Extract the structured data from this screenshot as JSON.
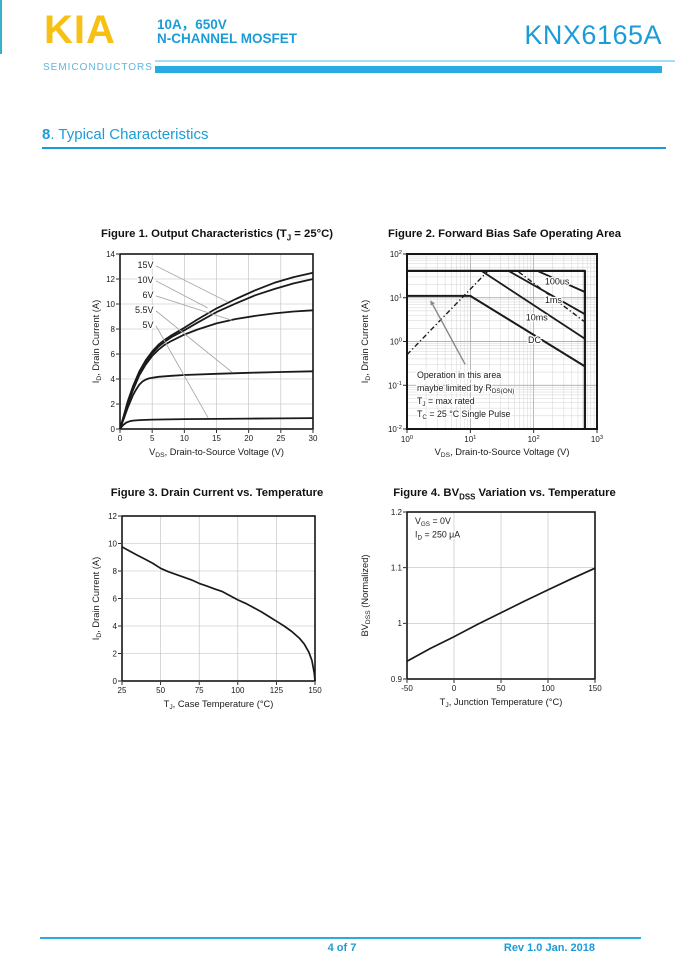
{
  "colors": {
    "blue": "#1B9CD8",
    "rule": "#29ABE2",
    "rule_light": "#A8DCF0",
    "yellow": "#F6C114",
    "logo_sub_blue": "#62B5DB",
    "edge_teal": "#35B3C6",
    "chart_ink": "#1a1a1a",
    "grid_gray": "#bdbdbd",
    "leader_gray": "#ABABAB"
  },
  "header": {
    "logo_text": "KIA",
    "logo_sub": "SEMICONDUCTORS",
    "rating": "10A，650V",
    "device_type": "N-CHANNEL MOSFET",
    "part_number": "KNX6165A"
  },
  "section": {
    "number": "8",
    "title": ".  Typical Characteristics"
  },
  "footer": {
    "page_info": "4 of 7",
    "revision": "Rev 1.0 Jan. 2018"
  },
  "chart_data": [
    {
      "type": "line",
      "title": "Figure 1. Output Characteristics (T~J~ = 25°C)",
      "xlabel": "V~DS~, Drain-to-Source Voltage (V)",
      "ylabel": "I~D~, Drain Current (A)",
      "xscale": "linear",
      "yscale": "linear",
      "xlim": [
        0,
        30
      ],
      "ylim": [
        0,
        14
      ],
      "xticks": [
        0,
        5,
        10,
        15,
        20,
        25,
        30
      ],
      "yticks": [
        0,
        2,
        4,
        6,
        8,
        10,
        12,
        14
      ],
      "xgrid": [
        5,
        10,
        15,
        20,
        25
      ],
      "ygrid": [
        2,
        4,
        6,
        8,
        10,
        12
      ],
      "series": [
        {
          "name": "VGS = 15V",
          "width": 1.8,
          "points": [
            [
              0,
              0
            ],
            [
              0.6,
              1.1
            ],
            [
              1.2,
              2.2
            ],
            [
              2,
              3.4
            ],
            [
              3,
              4.6
            ],
            [
              4,
              5.5
            ],
            [
              5,
              6.2
            ],
            [
              6,
              6.75
            ],
            [
              7,
              7.15
            ],
            [
              8,
              7.5
            ],
            [
              10,
              8.1
            ],
            [
              12,
              8.75
            ],
            [
              15,
              9.65
            ],
            [
              18,
              10.4
            ],
            [
              21,
              11.1
            ],
            [
              24,
              11.7
            ],
            [
              27,
              12.15
            ],
            [
              30,
              12.5
            ]
          ]
        },
        {
          "name": "VGS = 10V",
          "width": 1.8,
          "points": [
            [
              0,
              0
            ],
            [
              0.6,
              1.05
            ],
            [
              1.2,
              2.1
            ],
            [
              2,
              3.25
            ],
            [
              3,
              4.45
            ],
            [
              4,
              5.35
            ],
            [
              5,
              6.05
            ],
            [
              6,
              6.6
            ],
            [
              7,
              7.0
            ],
            [
              8,
              7.35
            ],
            [
              10,
              7.9
            ],
            [
              12,
              8.5
            ],
            [
              15,
              9.35
            ],
            [
              18,
              10.05
            ],
            [
              21,
              10.7
            ],
            [
              24,
              11.2
            ],
            [
              27,
              11.65
            ],
            [
              30,
              12.0
            ]
          ]
        },
        {
          "name": "VGS = 6V",
          "width": 1.8,
          "points": [
            [
              0,
              0
            ],
            [
              0.6,
              1.0
            ],
            [
              1.2,
              2.0
            ],
            [
              2,
              3.1
            ],
            [
              3,
              4.3
            ],
            [
              4,
              5.15
            ],
            [
              5,
              5.85
            ],
            [
              6,
              6.35
            ],
            [
              7,
              6.75
            ],
            [
              8,
              7.05
            ],
            [
              10,
              7.55
            ],
            [
              12,
              7.95
            ],
            [
              15,
              8.45
            ],
            [
              18,
              8.8
            ],
            [
              21,
              9.05
            ],
            [
              24,
              9.25
            ],
            [
              27,
              9.4
            ],
            [
              30,
              9.5
            ]
          ]
        },
        {
          "name": "VGS = 5.5V",
          "width": 1.8,
          "points": [
            [
              0,
              0
            ],
            [
              0.6,
              0.85
            ],
            [
              1.2,
              1.7
            ],
            [
              2,
              2.7
            ],
            [
              2.5,
              3.15
            ],
            [
              3,
              3.55
            ],
            [
              3.5,
              3.8
            ],
            [
              4,
              3.95
            ],
            [
              4.5,
              4.05
            ],
            [
              5,
              4.1
            ],
            [
              6,
              4.18
            ],
            [
              8,
              4.26
            ],
            [
              10,
              4.32
            ],
            [
              15,
              4.42
            ],
            [
              20,
              4.5
            ],
            [
              25,
              4.56
            ],
            [
              30,
              4.62
            ]
          ]
        },
        {
          "name": "VGS = 5V",
          "width": 1.8,
          "points": [
            [
              0,
              0
            ],
            [
              0.5,
              0.32
            ],
            [
              1,
              0.52
            ],
            [
              1.5,
              0.62
            ],
            [
              2,
              0.67
            ],
            [
              3,
              0.71
            ],
            [
              5,
              0.75
            ],
            [
              10,
              0.79
            ],
            [
              15,
              0.81
            ],
            [
              20,
              0.83
            ],
            [
              25,
              0.85
            ],
            [
              30,
              0.87
            ]
          ]
        },
        {
          "name": "leader-15V",
          "color": "#ABABAB",
          "width": 0.9,
          "points": [
            [
              5.6,
              13.05
            ],
            [
              16.8,
              10.15
            ]
          ]
        },
        {
          "name": "leader-10V",
          "color": "#ABABAB",
          "width": 0.9,
          "points": [
            [
              5.6,
              11.85
            ],
            [
              13.6,
              9.7
            ]
          ]
        },
        {
          "name": "leader-6V",
          "color": "#ABABAB",
          "width": 0.9,
          "points": [
            [
              5.6,
              10.65
            ],
            [
              17.4,
              8.7
            ]
          ]
        },
        {
          "name": "leader-5.5V",
          "color": "#ABABAB",
          "width": 0.9,
          "points": [
            [
              5.6,
              9.45
            ],
            [
              17.4,
              4.55
            ]
          ]
        },
        {
          "name": "leader-5V",
          "color": "#ABABAB",
          "width": 0.9,
          "points": [
            [
              5.6,
              8.25
            ],
            [
              13.7,
              0.9
            ]
          ]
        }
      ],
      "labels": [
        {
          "text": "15V",
          "x": 5.2,
          "y": 12.9,
          "anchor": "end",
          "size": 9
        },
        {
          "text": "10V",
          "x": 5.2,
          "y": 11.7,
          "anchor": "end",
          "size": 9
        },
        {
          "text": "6V",
          "x": 5.2,
          "y": 10.5,
          "anchor": "end",
          "size": 9
        },
        {
          "text": "5.5V",
          "x": 5.2,
          "y": 9.3,
          "anchor": "end",
          "size": 9
        },
        {
          "text": "5V",
          "x": 5.2,
          "y": 8.1,
          "anchor": "end",
          "size": 9
        }
      ]
    },
    {
      "type": "line",
      "title": "Figure 2. Forward Bias Safe Operating Area",
      "xlabel": "V~DS~, Drain-to-Source Voltage (V)",
      "ylabel": "I~D~, Drain Current (A)",
      "xscale": "log",
      "yscale": "log",
      "xlim": [
        1,
        1000
      ],
      "ylim": [
        0.01,
        100
      ],
      "xticks": [
        1,
        10,
        100,
        1000
      ],
      "yticks": [
        0.01,
        0.1,
        1,
        10,
        100
      ],
      "series": [
        {
          "name": "SOA boundary",
          "width": 2.2,
          "points": [
            [
              1,
              41
            ],
            [
              645,
              41
            ],
            [
              645,
              0.0105
            ]
          ]
        },
        {
          "name": "current limit + DC",
          "width": 2.0,
          "points": [
            [
              1,
              11
            ],
            [
              10,
              11
            ],
            [
              645,
              0.27
            ]
          ]
        },
        {
          "name": "10ms",
          "width": 1.8,
          "points": [
            [
              15,
              41
            ],
            [
              645,
              1.15
            ]
          ]
        },
        {
          "name": "1ms",
          "width": 1.8,
          "points": [
            [
              40,
              41
            ],
            [
              645,
              4.2
            ]
          ]
        },
        {
          "name": "100us",
          "width": 1.8,
          "points": [
            [
              115,
              41
            ],
            [
              645,
              13.5
            ]
          ]
        },
        {
          "name": "RDS(on) limit",
          "width": 1.4,
          "dash": "5 2.5 1.3 2.5",
          "points": [
            [
              1,
              0.5
            ],
            [
              19,
              41
            ]
          ]
        },
        {
          "name": "single-pulse thermal limit",
          "width": 1.4,
          "dash": "5 2.5 1.3 2.5",
          "points": [
            [
              58,
              39
            ],
            [
              620,
              2.9
            ]
          ]
        },
        {
          "name": "pointer",
          "color": "#8a8a8a",
          "width": 1.4,
          "arrow": true,
          "points": [
            [
              2.55,
              7
            ],
            [
              8.3,
              0.3
            ]
          ]
        }
      ],
      "labels": [
        {
          "text": "100us",
          "x": 235,
          "y": 20,
          "size": 9
        },
        {
          "text": "1ms",
          "x": 205,
          "y": 7.6,
          "size": 9
        },
        {
          "text": "10ms",
          "x": 112,
          "y": 3.0,
          "size": 9
        },
        {
          "text": "DC",
          "x": 103,
          "y": 0.92,
          "size": 9
        }
      ],
      "annotation": {
        "lines": [
          "Operation in this area",
          "maybe limited by R~DS(ON)~",
          "T~J~ = max rated",
          "T~C~ = 25 °C Single Pulse"
        ],
        "size": 8.8,
        "lh": 13
      }
    },
    {
      "type": "line",
      "title": "Figure 3. Drain Current vs. Temperature",
      "xlabel": "T~J~, Case Temperature (°C)",
      "ylabel": "I~D~, Drain Current (A)",
      "xscale": "linear",
      "yscale": "linear",
      "xlim": [
        25,
        150
      ],
      "ylim": [
        0,
        12
      ],
      "xticks": [
        25,
        50,
        75,
        100,
        125,
        150
      ],
      "yticks": [
        0,
        2,
        4,
        6,
        8,
        10,
        12
      ],
      "xgrid": [
        50,
        75,
        100,
        125
      ],
      "ygrid": [
        2,
        4,
        6,
        8,
        10
      ],
      "series": [
        {
          "name": "ID vs temperature",
          "width": 1.7,
          "points": [
            [
              25,
              9.75
            ],
            [
              30,
              9.45
            ],
            [
              35,
              9.15
            ],
            [
              40,
              8.85
            ],
            [
              45,
              8.55
            ],
            [
              50,
              8.2
            ],
            [
              55,
              7.95
            ],
            [
              60,
              7.75
            ],
            [
              65,
              7.55
            ],
            [
              70,
              7.35
            ],
            [
              75,
              7.1
            ],
            [
              80,
              6.9
            ],
            [
              85,
              6.7
            ],
            [
              90,
              6.5
            ],
            [
              95,
              6.2
            ],
            [
              100,
              5.9
            ],
            [
              105,
              5.65
            ],
            [
              110,
              5.35
            ],
            [
              115,
              5.05
            ],
            [
              120,
              4.7
            ],
            [
              125,
              4.35
            ],
            [
              130,
              4.0
            ],
            [
              135,
              3.6
            ],
            [
              140,
              3.1
            ],
            [
              143,
              2.7
            ],
            [
              146,
              2.1
            ],
            [
              148,
              1.5
            ],
            [
              149.5,
              0.6
            ],
            [
              150,
              0
            ]
          ]
        }
      ],
      "labels": []
    },
    {
      "type": "line",
      "title": "Figure 4. BV~DSS~ Variation vs. Temperature",
      "xlabel": "T~J~, Junction Temperature (°C)",
      "ylabel": "BV~DSS~ (Normalized)",
      "xscale": "linear",
      "yscale": "linear",
      "xlim": [
        -50,
        150
      ],
      "ylim": [
        0.9,
        1.2
      ],
      "xticks": [
        -50,
        0,
        50,
        100,
        150
      ],
      "yticks": [
        0.9,
        1,
        1.1,
        1.2
      ],
      "xgrid": [
        0,
        50,
        100
      ],
      "ygrid": [
        1,
        1.1
      ],
      "series": [
        {
          "name": "BVDSS normalized",
          "width": 1.7,
          "points": [
            [
              -50,
              0.932
            ],
            [
              -25,
              0.955
            ],
            [
              0,
              0.976
            ],
            [
              25,
              0.998
            ],
            [
              50,
              1.019
            ],
            [
              75,
              1.04
            ],
            [
              100,
              1.06
            ],
            [
              125,
              1.08
            ],
            [
              150,
              1.099
            ]
          ]
        }
      ],
      "labels": [],
      "annotation": {
        "lines": [
          "V~GS~ = 0V",
          "I~D~ = 250 μA"
        ],
        "size": 8.8,
        "lh": 13.5
      }
    }
  ]
}
